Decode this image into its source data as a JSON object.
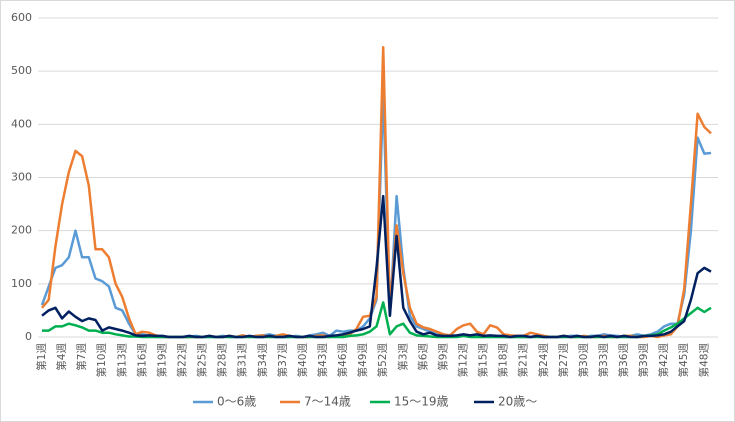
{
  "chart_data": {
    "type": "line",
    "categories": [
      "第1週",
      null,
      null,
      "第4週",
      null,
      null,
      "第7週",
      null,
      null,
      "第10週",
      null,
      null,
      "第13週",
      null,
      null,
      "第16週",
      null,
      null,
      "第19週",
      null,
      null,
      "第22週",
      null,
      null,
      "第25週",
      null,
      null,
      "第28週",
      null,
      null,
      "第31週",
      null,
      null,
      "第34週",
      null,
      null,
      "第37週",
      null,
      null,
      "第40週",
      null,
      null,
      "第43週",
      null,
      null,
      "第46週",
      null,
      null,
      "第49週",
      null,
      null,
      "第52週",
      null,
      null,
      "第3週",
      null,
      null,
      "第6週",
      null,
      null,
      "第9週",
      null,
      null,
      "第12週",
      null,
      null,
      "第15週",
      null,
      null,
      "第18週",
      null,
      null,
      "第21週",
      null,
      null,
      "第24週",
      null,
      null,
      "第27週",
      null,
      null,
      "第30週",
      null,
      null,
      "第33週",
      null,
      null,
      "第36週",
      null,
      null,
      "第39週",
      null,
      null,
      "第42週",
      null,
      null,
      "第45週",
      null,
      null,
      "第48週",
      null
    ],
    "series": [
      {
        "name": "0～6歳",
        "color": "#5b9bd5",
        "values": [
          60,
          95,
          130,
          135,
          150,
          200,
          150,
          150,
          110,
          105,
          95,
          55,
          50,
          25,
          5,
          5,
          2,
          0,
          0,
          0,
          0,
          0,
          0,
          2,
          0,
          0,
          0,
          2,
          0,
          0,
          2,
          0,
          2,
          3,
          5,
          2,
          0,
          0,
          2,
          0,
          3,
          5,
          8,
          2,
          12,
          10,
          12,
          12,
          20,
          35,
          70,
          460,
          40,
          265,
          130,
          40,
          20,
          15,
          10,
          5,
          3,
          2,
          2,
          2,
          3,
          2,
          0,
          2,
          2,
          0,
          0,
          0,
          0,
          0,
          2,
          0,
          0,
          0,
          0,
          2,
          2,
          0,
          2,
          2,
          5,
          3,
          2,
          0,
          2,
          5,
          2,
          5,
          10,
          20,
          25,
          25,
          80,
          200,
          375,
          345,
          346
        ]
      },
      {
        "name": "7～14歳",
        "color": "#ed7d31",
        "values": [
          55,
          70,
          170,
          250,
          310,
          350,
          340,
          285,
          165,
          165,
          150,
          100,
          75,
          35,
          5,
          10,
          8,
          3,
          0,
          0,
          0,
          0,
          0,
          0,
          0,
          2,
          0,
          0,
          2,
          0,
          3,
          0,
          2,
          3,
          0,
          2,
          5,
          2,
          0,
          0,
          0,
          2,
          3,
          0,
          2,
          3,
          5,
          15,
          38,
          40,
          75,
          545,
          50,
          210,
          120,
          55,
          25,
          18,
          15,
          10,
          5,
          3,
          15,
          22,
          25,
          10,
          5,
          22,
          18,
          5,
          3,
          2,
          2,
          8,
          5,
          2,
          0,
          0,
          2,
          0,
          0,
          2,
          0,
          0,
          2,
          0,
          0,
          2,
          2,
          0,
          0,
          2,
          0,
          3,
          5,
          20,
          90,
          250,
          420,
          395,
          383
        ]
      },
      {
        "name": "15～19歳",
        "color": "#00b050",
        "values": [
          12,
          12,
          20,
          20,
          25,
          22,
          18,
          12,
          12,
          8,
          8,
          5,
          3,
          1,
          1,
          0,
          0,
          0,
          0,
          0,
          0,
          0,
          0,
          0,
          0,
          0,
          0,
          0,
          0,
          0,
          0,
          0,
          0,
          0,
          0,
          0,
          0,
          0,
          0,
          0,
          0,
          0,
          0,
          0,
          0,
          0,
          2,
          3,
          5,
          10,
          20,
          65,
          5,
          20,
          25,
          8,
          3,
          2,
          1,
          0,
          0,
          0,
          0,
          2,
          0,
          0,
          0,
          0,
          0,
          0,
          0,
          0,
          0,
          0,
          0,
          0,
          0,
          0,
          0,
          0,
          0,
          0,
          0,
          0,
          0,
          0,
          0,
          0,
          0,
          0,
          2,
          3,
          5,
          12,
          18,
          25,
          35,
          45,
          55,
          47,
          55
        ]
      },
      {
        "name": "20歳～",
        "color": "#002060",
        "values": [
          40,
          50,
          55,
          35,
          48,
          38,
          30,
          35,
          32,
          12,
          18,
          15,
          12,
          8,
          3,
          2,
          3,
          2,
          2,
          0,
          0,
          0,
          2,
          0,
          0,
          2,
          0,
          0,
          2,
          0,
          0,
          2,
          0,
          0,
          2,
          0,
          0,
          2,
          0,
          0,
          2,
          0,
          0,
          2,
          3,
          5,
          8,
          12,
          15,
          20,
          130,
          265,
          40,
          190,
          55,
          30,
          10,
          5,
          8,
          3,
          2,
          2,
          3,
          5,
          3,
          5,
          2,
          3,
          2,
          2,
          0,
          2,
          2,
          0,
          2,
          0,
          0,
          0,
          2,
          0,
          2,
          0,
          0,
          2,
          0,
          2,
          0,
          2,
          0,
          0,
          2,
          2,
          3,
          5,
          10,
          20,
          30,
          70,
          120,
          130,
          123
        ]
      }
    ],
    "ylim": [
      0,
      600
    ],
    "yticks": [
      0,
      100,
      200,
      300,
      400,
      500,
      600
    ],
    "grid": true
  }
}
